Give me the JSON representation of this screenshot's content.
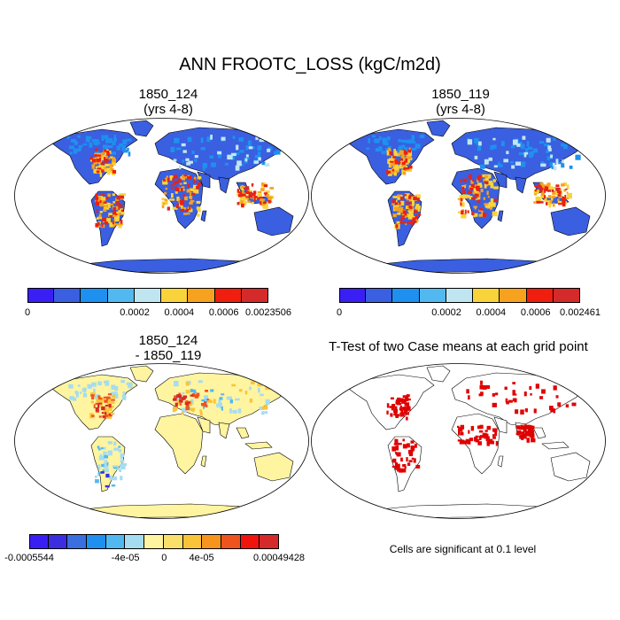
{
  "title": "ANN FROOTC_LOSS (kgC/m2d)",
  "panels": [
    {
      "title_line1": "1850_124",
      "title_line2": "(yrs 4-8)"
    },
    {
      "title_line1": "1850_119",
      "title_line2": "(yrs 4-8)"
    },
    {
      "title_line1": "1850_124",
      "title_line2": "- 1850_119"
    },
    {
      "title_line1": "T-Test of two Case means at each grid point",
      "title_line2": ""
    }
  ],
  "colorbars": {
    "case1": {
      "colors": [
        "#3a1ff5",
        "#3a5fe0",
        "#1e90f0",
        "#52b9f0",
        "#bfe6f0",
        "#f9d33a",
        "#f7a21e",
        "#f01e0e",
        "#d42a2a"
      ],
      "labels": [
        "0",
        "0.0002",
        "0.0004",
        "0.0006",
        "0.0023506"
      ]
    },
    "case2": {
      "colors": [
        "#3a1ff5",
        "#3a5fe0",
        "#1e90f0",
        "#52b9f0",
        "#bfe6f0",
        "#f9d33a",
        "#f7a21e",
        "#f01e0e",
        "#d42a2a"
      ],
      "labels": [
        "0",
        "0.0002",
        "0.0004",
        "0.0006",
        "0.002461"
      ]
    },
    "diff": {
      "colors": [
        "#3a1ff5",
        "#3a2ee0",
        "#3a6fe0",
        "#1e90f0",
        "#52b9f0",
        "#a6dcf0",
        "#fff4a0",
        "#f9e06a",
        "#f9c43a",
        "#f7941e",
        "#f0541e",
        "#f0140e",
        "#d42a2a"
      ],
      "labels": [
        "-0.0005544",
        "-4e-05",
        "0",
        "4e-05",
        "0.00049428"
      ]
    }
  },
  "ttest_note": "Cells are significant at 0.1 level",
  "map_colors": {
    "ocean": "#ffffff",
    "case_land": "#3a5fe0",
    "diff_land": "#fff4a0",
    "signif": "#e00000"
  }
}
